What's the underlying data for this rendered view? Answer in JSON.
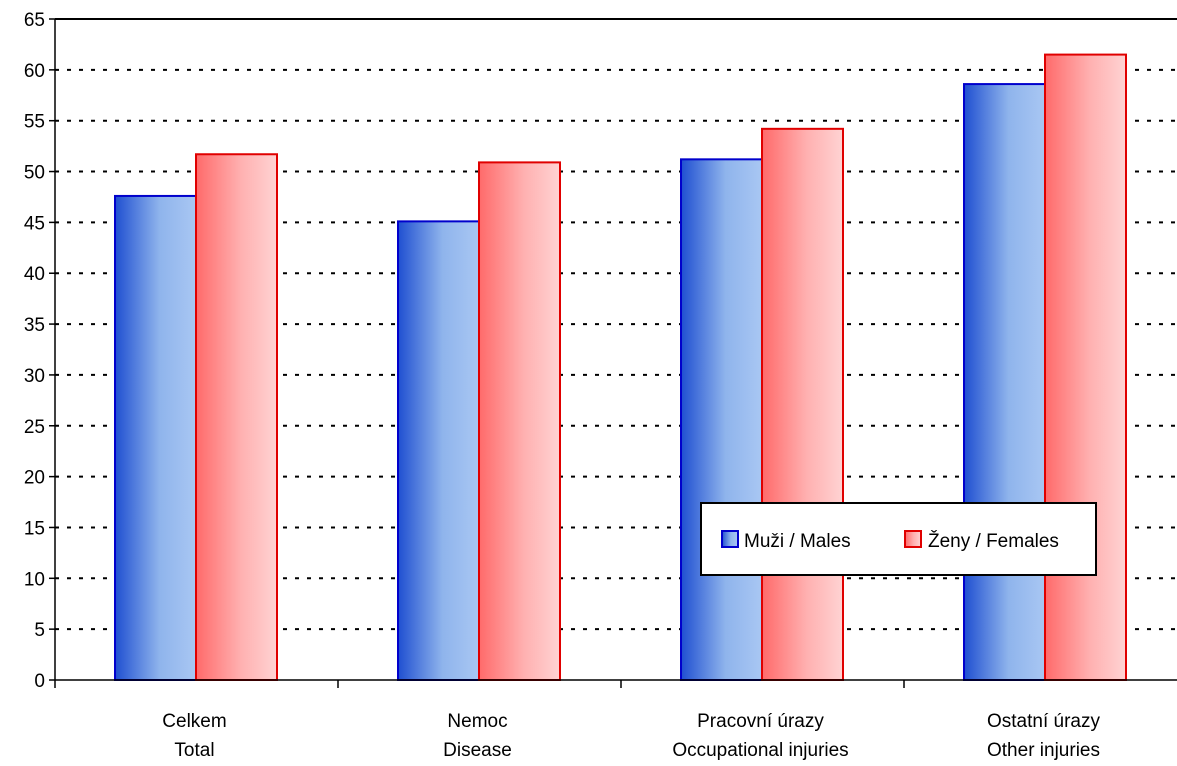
{
  "chart_data": {
    "type": "bar",
    "categories": [
      [
        "Celkem",
        "Total"
      ],
      [
        "Nemoc",
        "Disease"
      ],
      [
        "Pracovní úrazy",
        "Occupational injuries"
      ],
      [
        "Ostatní úrazy",
        "Other injuries"
      ]
    ],
    "series": [
      {
        "name": "Muži / Males",
        "values": [
          47.6,
          45.1,
          51.2,
          58.6
        ],
        "color": "#1f4fd1",
        "stroke": "#0000cc"
      },
      {
        "name": "Ženy / Females",
        "values": [
          51.7,
          50.9,
          54.2,
          61.5
        ],
        "color": "#ff6f6f",
        "stroke": "#e00000"
      }
    ],
    "ylim": [
      0,
      65
    ],
    "yticks": [
      0,
      5,
      10,
      15,
      20,
      25,
      30,
      35,
      40,
      45,
      50,
      55,
      60,
      65
    ],
    "grid": true,
    "legend_position": "inside-lower-right",
    "title": "",
    "xlabel": "",
    "ylabel": ""
  }
}
